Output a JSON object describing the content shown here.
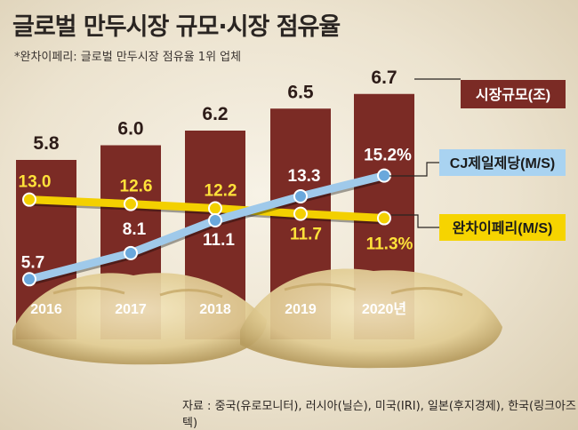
{
  "title": "글로벌 만두시장 규모·시장 점유율",
  "subtitle": "*완차이페리: 글로벌 만두시장 점유율 1위 업체",
  "source": "자료 : 중국(유로모니터), 러시아(닐슨), 미국(IRI), 일본(후지경제), 한국(링크아즈텍)",
  "colors": {
    "bar": "#7b2b25",
    "cj_line": "#9fc9ea",
    "cj_marker": "#6aa8dc",
    "wanchai_line": "#f3d000",
    "bar_value_text": "#2d1c18",
    "year_text": "#ffffff",
    "wanchai_value_text": "#ffe23a",
    "cj_value_text": "#ffffff"
  },
  "chart_data": {
    "type": "bar",
    "categories": [
      "2016",
      "2017",
      "2018",
      "2019",
      "2020년"
    ],
    "series": [
      {
        "name": "시장규모(조)",
        "type": "bar",
        "values": [
          5.8,
          6.0,
          6.2,
          6.5,
          6.7
        ],
        "labels": [
          "5.8",
          "6.0",
          "6.2",
          "6.5",
          "6.7"
        ]
      },
      {
        "name": "CJ제일제당(M/S)",
        "type": "line",
        "values": [
          5.7,
          8.1,
          11.1,
          13.3,
          15.2
        ],
        "labels": [
          "5.7",
          "8.1",
          "11.1",
          "13.3",
          "15.2%"
        ]
      },
      {
        "name": "완차이페리(M/S)",
        "type": "line",
        "values": [
          13.0,
          12.6,
          12.2,
          11.7,
          11.3
        ],
        "labels": [
          "13.0",
          "12.6",
          "12.2",
          "11.7",
          "11.3%"
        ]
      }
    ],
    "legend": [
      "시장규모(조)",
      "CJ제일제당(M/S)",
      "완차이페리(M/S)"
    ]
  }
}
